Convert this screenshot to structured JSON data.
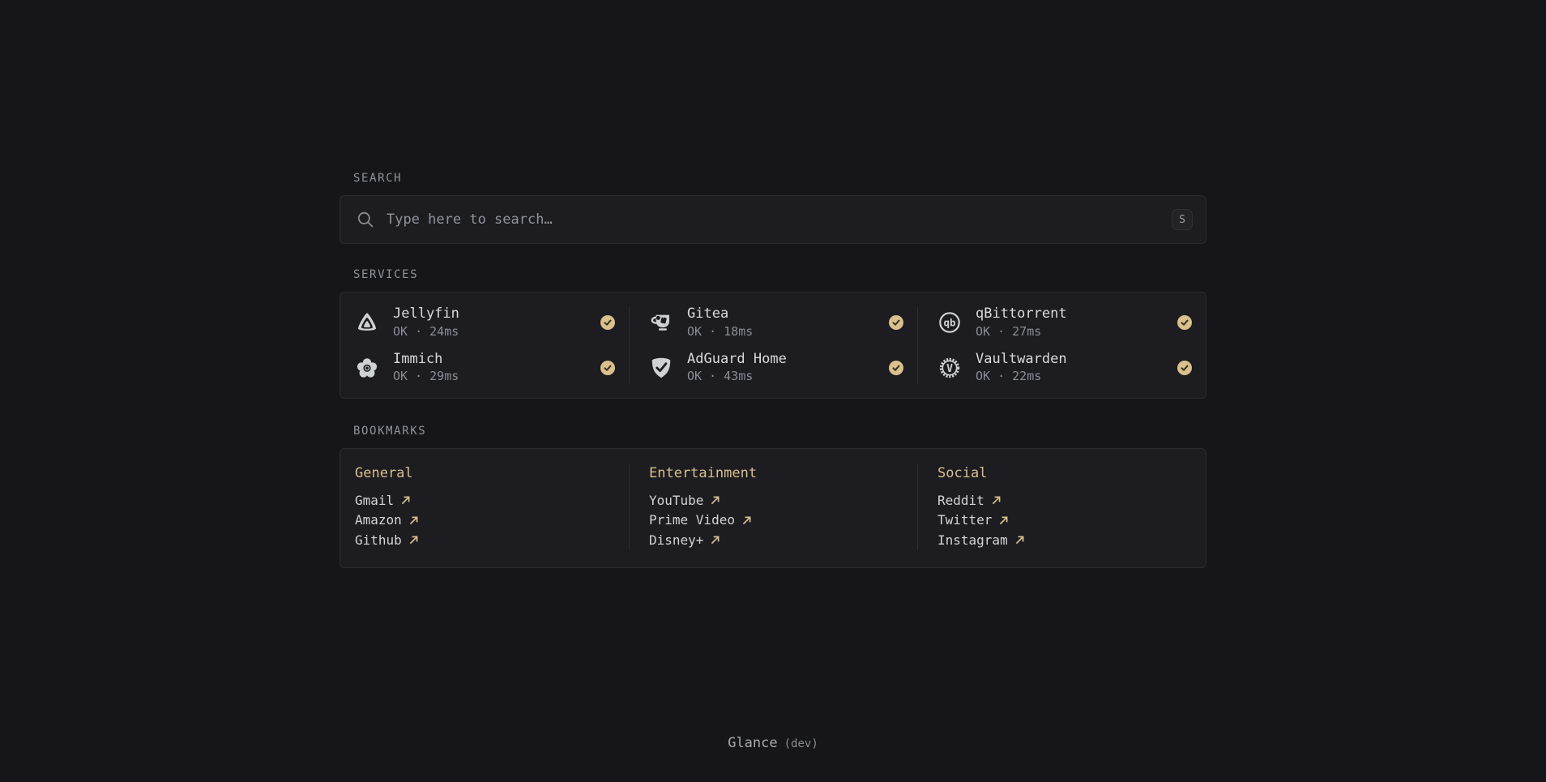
{
  "colors": {
    "background": "#16161a",
    "card_background": "#1c1c21",
    "accent": "#d9c08c",
    "status_ok_badge": "#d9c08c"
  },
  "search": {
    "section_label": "SEARCH",
    "placeholder": "Type here to search…",
    "shortcut_key": "S"
  },
  "services": {
    "section_label": "SERVICES",
    "columns": [
      {
        "items": [
          {
            "name": "Jellyfin",
            "status_text": "OK · 24ms",
            "status": "ok",
            "icon": "jellyfin-icon"
          },
          {
            "name": "Immich",
            "status_text": "OK · 29ms",
            "status": "ok",
            "icon": "immich-icon"
          }
        ]
      },
      {
        "items": [
          {
            "name": "Gitea",
            "status_text": "OK · 18ms",
            "status": "ok",
            "icon": "gitea-icon"
          },
          {
            "name": "AdGuard Home",
            "status_text": "OK · 43ms",
            "status": "ok",
            "icon": "adguard-home-icon"
          }
        ]
      },
      {
        "items": [
          {
            "name": "qBittorrent",
            "status_text": "OK · 27ms",
            "status": "ok",
            "icon": "qbittorrent-icon"
          },
          {
            "name": "Vaultwarden",
            "status_text": "OK · 22ms",
            "status": "ok",
            "icon": "vaultwarden-icon"
          }
        ]
      }
    ]
  },
  "bookmarks": {
    "section_label": "BOOKMARKS",
    "groups": [
      {
        "title": "General",
        "links": [
          {
            "label": "Gmail"
          },
          {
            "label": "Amazon"
          },
          {
            "label": "Github"
          }
        ]
      },
      {
        "title": "Entertainment",
        "links": [
          {
            "label": "YouTube"
          },
          {
            "label": "Prime Video"
          },
          {
            "label": "Disney+"
          }
        ]
      },
      {
        "title": "Social",
        "links": [
          {
            "label": "Reddit"
          },
          {
            "label": "Twitter"
          },
          {
            "label": "Instagram"
          }
        ]
      }
    ]
  },
  "footer": {
    "app_name": "Glance",
    "version_label": "(dev)"
  }
}
